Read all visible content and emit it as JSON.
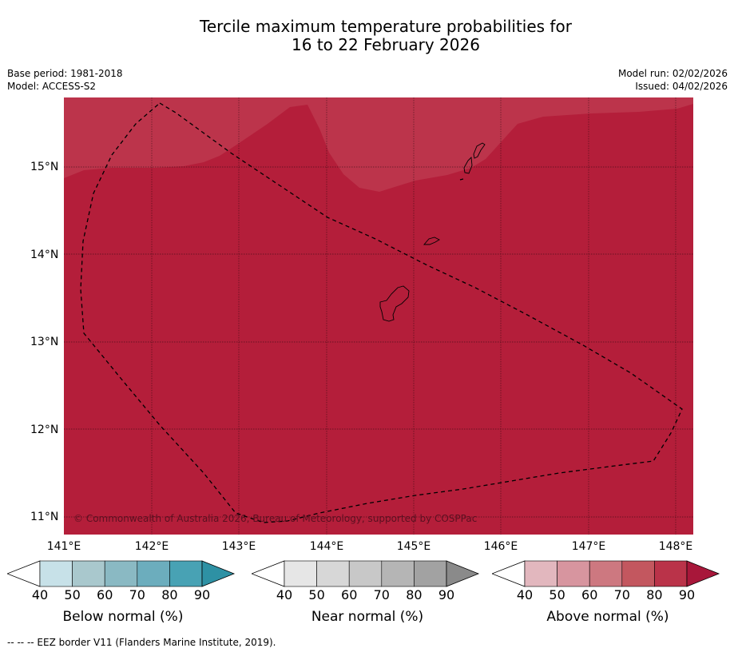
{
  "title": {
    "line1": "Tercile maximum temperature probabilities for",
    "line2": "16 to 22 February 2026"
  },
  "meta": {
    "base_period": "Base period: 1981-2018",
    "model": "Model: ACCESS-S2",
    "model_run": "Model run: 02/02/2026",
    "issued": "Issued: 04/02/2026"
  },
  "map": {
    "lat_labels": [
      "15°N",
      "14°N",
      "13°N",
      "12°N",
      "11°N"
    ],
    "lon_labels": [
      "141°E",
      "142°E",
      "143°E",
      "144°E",
      "145°E",
      "146°E",
      "147°E",
      "148°E"
    ],
    "copyright": "© Commonwealth of Australia 2026, Bureau of Meteorology, supported by COSPPac",
    "colors": {
      "base": "#b41e3a",
      "lighter": "#bc344b",
      "coast": "#000000"
    }
  },
  "colorbars": [
    {
      "title": "Below normal (%)",
      "ticks": [
        "40",
        "50",
        "60",
        "70",
        "80",
        "90"
      ],
      "colors": [
        "#ffffff",
        "#c7e1e8",
        "#a9c8cd",
        "#8ab9c3",
        "#6cadbd",
        "#48a2b4",
        "#2e91a4"
      ]
    },
    {
      "title": "Near normal (%)",
      "ticks": [
        "40",
        "50",
        "60",
        "70",
        "80",
        "90"
      ],
      "colors": [
        "#ffffff",
        "#e6e6e6",
        "#d7d7d7",
        "#c8c8c8",
        "#b5b5b5",
        "#a2a2a2",
        "#8a8a8a"
      ]
    },
    {
      "title": "Above normal (%)",
      "ticks": [
        "40",
        "50",
        "60",
        "70",
        "80",
        "90"
      ],
      "colors": [
        "#ffffff",
        "#e2b7be",
        "#d7959f",
        "#cd7880",
        "#c3575f",
        "#ba3349",
        "#a8173a"
      ]
    }
  ],
  "footer": "--  --  -- EEZ border V11 (Flanders Marine Institute, 2019)."
}
